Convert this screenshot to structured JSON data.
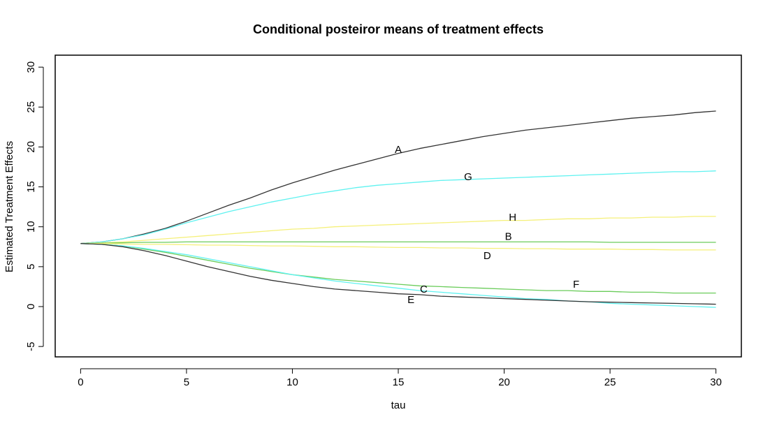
{
  "chart_data": {
    "type": "line",
    "title": "Conditional posteiror means of treatment effects",
    "xlabel": "tau",
    "ylabel": "Estimated Treatment Effects",
    "xlim": [
      -1.2,
      31.2
    ],
    "ylim": [
      -6.3,
      31.5
    ],
    "x_ticks": [
      0,
      5,
      10,
      15,
      20,
      25,
      30
    ],
    "y_ticks": [
      -5,
      0,
      5,
      10,
      15,
      20,
      25,
      30
    ],
    "grid": false,
    "legend": "none",
    "x": [
      0,
      1,
      2,
      3,
      4,
      5,
      6,
      7,
      8,
      9,
      10,
      11,
      12,
      13,
      14,
      15,
      16,
      17,
      18,
      19,
      20,
      21,
      22,
      23,
      24,
      25,
      26,
      27,
      28,
      29,
      30
    ],
    "series": [
      {
        "name": "A",
        "color": "#333333",
        "values": [
          7.9,
          8.1,
          8.5,
          9.1,
          9.8,
          10.7,
          11.7,
          12.7,
          13.6,
          14.6,
          15.5,
          16.3,
          17.1,
          17.8,
          18.5,
          19.2,
          19.8,
          20.3,
          20.8,
          21.3,
          21.7,
          22.1,
          22.4,
          22.7,
          23.0,
          23.3,
          23.6,
          23.8,
          24.0,
          24.3,
          24.5
        ],
        "label_pos": [
          15.0,
          19.6
        ]
      },
      {
        "name": "G",
        "color": "#5ff2f0",
        "values": [
          7.9,
          8.1,
          8.5,
          9.0,
          9.7,
          10.5,
          11.2,
          11.9,
          12.5,
          13.1,
          13.6,
          14.1,
          14.5,
          14.9,
          15.2,
          15.4,
          15.6,
          15.8,
          15.9,
          16.0,
          16.1,
          16.2,
          16.3,
          16.4,
          16.5,
          16.6,
          16.7,
          16.8,
          16.9,
          16.9,
          17.0
        ],
        "label_pos": [
          18.3,
          16.2
        ]
      },
      {
        "name": "H",
        "color": "#f5f07a",
        "values": [
          7.9,
          8.0,
          8.1,
          8.3,
          8.5,
          8.7,
          8.9,
          9.1,
          9.3,
          9.5,
          9.7,
          9.8,
          10.0,
          10.1,
          10.2,
          10.3,
          10.4,
          10.5,
          10.6,
          10.7,
          10.8,
          10.8,
          10.9,
          11.0,
          11.0,
          11.1,
          11.1,
          11.2,
          11.2,
          11.3,
          11.3
        ],
        "label_pos": [
          20.4,
          11.1
        ]
      },
      {
        "name": "B",
        "color": "#6acc5a",
        "values": [
          7.9,
          7.95,
          8.0,
          8.05,
          8.05,
          8.1,
          8.1,
          8.1,
          8.1,
          8.1,
          8.1,
          8.1,
          8.1,
          8.1,
          8.1,
          8.1,
          8.1,
          8.1,
          8.1,
          8.1,
          8.1,
          8.1,
          8.1,
          8.1,
          8.1,
          8.05,
          8.05,
          8.05,
          8.05,
          8.05,
          8.05
        ],
        "label_pos": [
          20.2,
          8.7
        ]
      },
      {
        "name": "D",
        "color": "#f5f07a",
        "values": [
          7.9,
          7.9,
          7.85,
          7.8,
          7.8,
          7.75,
          7.7,
          7.7,
          7.65,
          7.6,
          7.6,
          7.55,
          7.5,
          7.5,
          7.45,
          7.4,
          7.4,
          7.35,
          7.35,
          7.3,
          7.3,
          7.25,
          7.25,
          7.2,
          7.2,
          7.2,
          7.15,
          7.15,
          7.1,
          7.1,
          7.1
        ],
        "label_pos": [
          19.2,
          6.3
        ]
      },
      {
        "name": "F",
        "color": "#6acc5a",
        "values": [
          7.9,
          7.8,
          7.6,
          7.2,
          6.8,
          6.3,
          5.8,
          5.3,
          4.8,
          4.4,
          4.0,
          3.7,
          3.4,
          3.2,
          3.0,
          2.8,
          2.6,
          2.5,
          2.4,
          2.3,
          2.2,
          2.1,
          2.0,
          2.0,
          1.9,
          1.9,
          1.8,
          1.8,
          1.7,
          1.7,
          1.7
        ],
        "label_pos": [
          23.4,
          2.7
        ]
      },
      {
        "name": "C",
        "color": "#5ff2f0",
        "values": [
          7.9,
          7.8,
          7.6,
          7.3,
          6.9,
          6.5,
          6.0,
          5.5,
          5.0,
          4.5,
          4.0,
          3.6,
          3.2,
          2.9,
          2.6,
          2.3,
          2.0,
          1.8,
          1.6,
          1.4,
          1.2,
          1.0,
          0.9,
          0.7,
          0.6,
          0.4,
          0.3,
          0.2,
          0.1,
          0.0,
          -0.1
        ],
        "label_pos": [
          16.2,
          2.1
        ]
      },
      {
        "name": "E",
        "color": "#333333",
        "values": [
          7.9,
          7.8,
          7.5,
          7.0,
          6.4,
          5.7,
          5.0,
          4.4,
          3.8,
          3.3,
          2.9,
          2.5,
          2.2,
          2.0,
          1.8,
          1.6,
          1.5,
          1.3,
          1.2,
          1.1,
          1.0,
          0.9,
          0.8,
          0.7,
          0.6,
          0.55,
          0.5,
          0.45,
          0.4,
          0.35,
          0.3
        ],
        "label_pos": [
          15.6,
          0.8
        ]
      }
    ]
  }
}
